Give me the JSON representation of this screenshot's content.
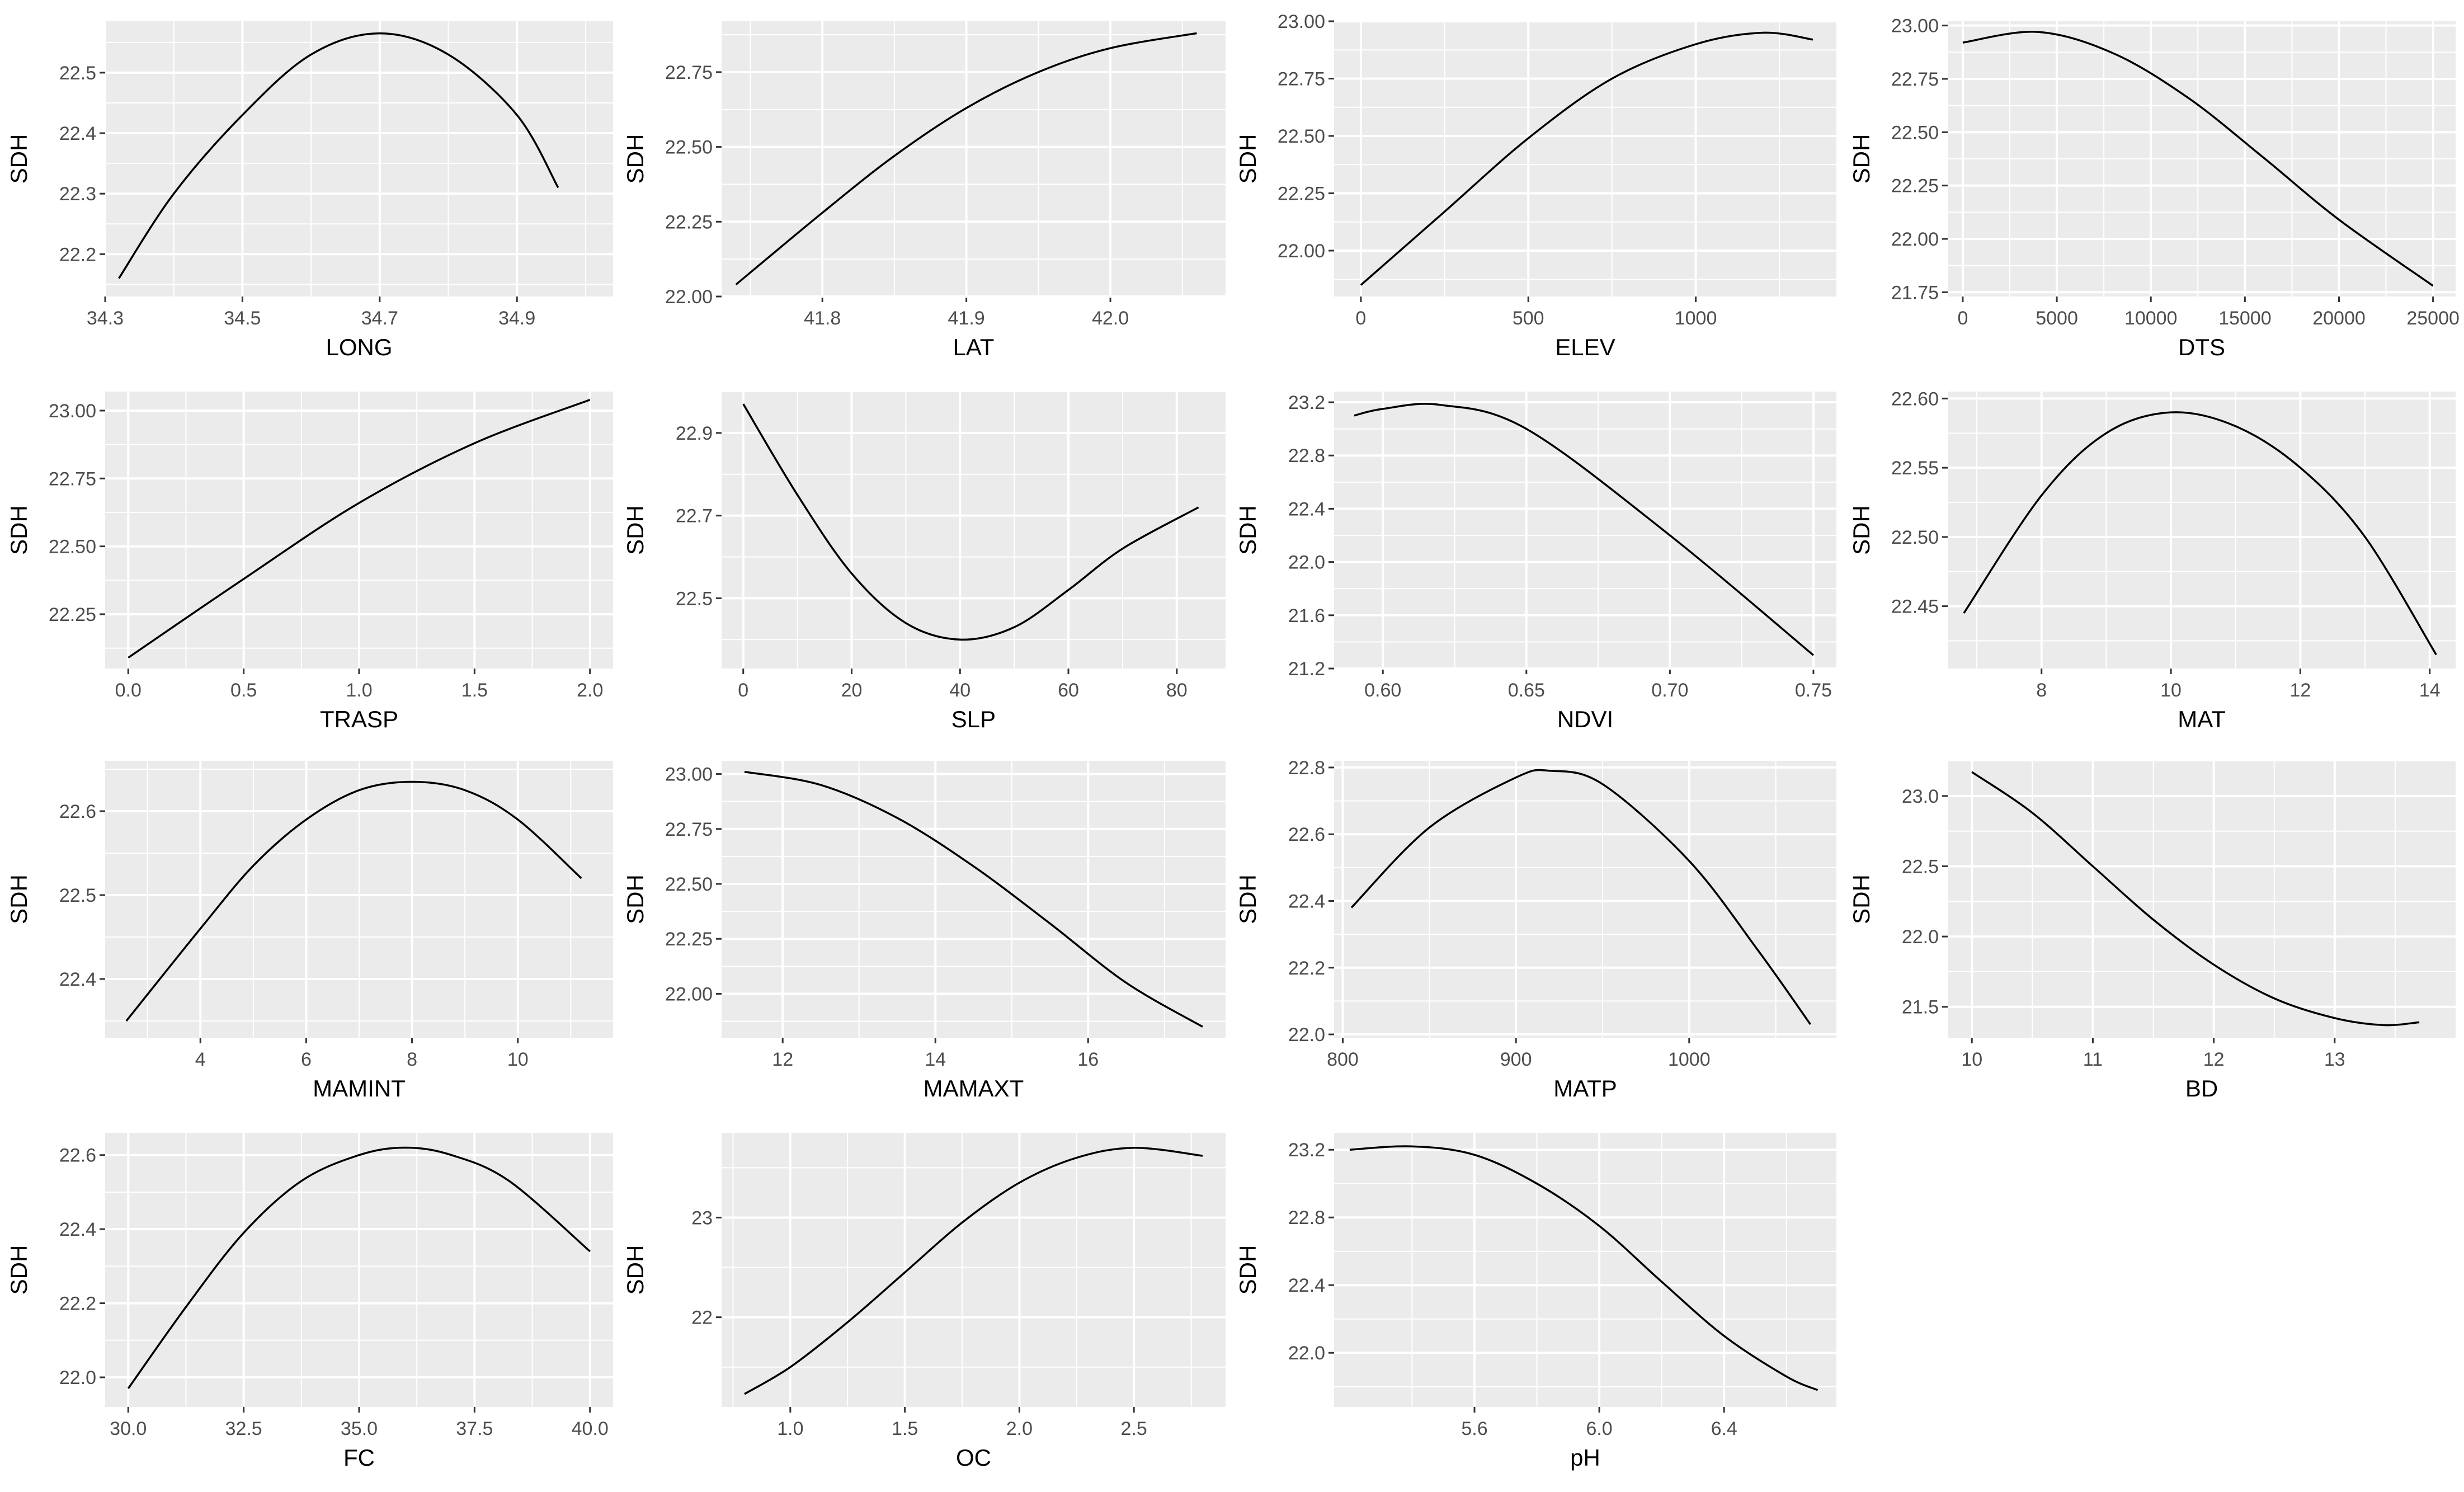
{
  "figure": {
    "panel_background": "#ebebeb",
    "grid_color": "#ffffff",
    "line_color": "#000000",
    "tick_label_color": "#4d4d4d"
  },
  "chart_data": [
    {
      "type": "line",
      "xlabel": "LONG",
      "ylabel": "SDH",
      "xlim": [
        34.3,
        35.04
      ],
      "ylim": [
        22.13,
        22.585
      ],
      "xticks": [
        34.3,
        34.5,
        34.7,
        34.9
      ],
      "yticks": [
        22.2,
        22.3,
        22.4,
        22.5
      ],
      "x": [
        34.32,
        34.4,
        34.5,
        34.6,
        34.7,
        34.8,
        34.9,
        34.96
      ],
      "y": [
        22.16,
        22.3,
        22.43,
        22.53,
        22.565,
        22.53,
        22.43,
        22.31
      ]
    },
    {
      "type": "line",
      "xlabel": "LAT",
      "ylabel": "SDH",
      "xlim": [
        41.73,
        42.08
      ],
      "ylim": [
        22.0,
        22.92
      ],
      "xticks": [
        41.8,
        41.9,
        42.0
      ],
      "yticks": [
        22.0,
        22.25,
        22.5,
        22.75
      ],
      "x": [
        41.74,
        41.8,
        41.85,
        41.9,
        41.95,
        42.0,
        42.06
      ],
      "y": [
        22.04,
        22.28,
        22.47,
        22.63,
        22.75,
        22.83,
        22.88
      ]
    },
    {
      "type": "line",
      "xlabel": "ELEV",
      "ylabel": "SDH",
      "xlim": [
        -80,
        1420
      ],
      "ylim": [
        21.8,
        23.0
      ],
      "xticks": [
        0,
        500,
        1000
      ],
      "yticks": [
        22.0,
        22.25,
        22.5,
        22.75,
        23.0
      ],
      "x": [
        0,
        250,
        500,
        750,
        1000,
        1200,
        1350
      ],
      "y": [
        21.85,
        22.17,
        22.49,
        22.75,
        22.9,
        22.95,
        22.92
      ]
    },
    {
      "type": "line",
      "xlabel": "DTS",
      "ylabel": "SDH",
      "xlim": [
        -800,
        26200
      ],
      "ylim": [
        21.73,
        23.02
      ],
      "xticks": [
        0,
        5000,
        10000,
        15000,
        20000,
        25000
      ],
      "yticks": [
        21.75,
        22.0,
        22.25,
        22.5,
        22.75,
        23.0
      ],
      "x": [
        0,
        4000,
        8000,
        12000,
        16000,
        20000,
        25000
      ],
      "y": [
        22.92,
        22.97,
        22.87,
        22.66,
        22.38,
        22.09,
        21.78
      ]
    },
    {
      "type": "line",
      "xlabel": "TRASP",
      "ylabel": "SDH",
      "xlim": [
        -0.1,
        2.1
      ],
      "ylim": [
        22.05,
        23.07
      ],
      "xticks": [
        0.0,
        0.5,
        1.0,
        1.5,
        2.0
      ],
      "yticks": [
        22.25,
        22.5,
        22.75,
        23.0
      ],
      "x": [
        0.0,
        0.5,
        1.0,
        1.5,
        2.0
      ],
      "y": [
        22.09,
        22.38,
        22.66,
        22.88,
        23.04
      ]
    },
    {
      "type": "line",
      "xlabel": "SLP",
      "ylabel": "SDH",
      "xlim": [
        -4,
        89
      ],
      "ylim": [
        22.33,
        23.0
      ],
      "xticks": [
        0,
        20,
        40,
        60,
        80
      ],
      "yticks": [
        22.5,
        22.7,
        22.9
      ],
      "x": [
        0,
        10,
        20,
        30,
        40,
        50,
        60,
        70,
        84
      ],
      "y": [
        22.97,
        22.75,
        22.56,
        22.44,
        22.4,
        22.43,
        22.52,
        22.62,
        22.72
      ]
    },
    {
      "type": "line",
      "xlabel": "NDVI",
      "ylabel": "SDH",
      "xlim": [
        0.583,
        0.758
      ],
      "ylim": [
        21.2,
        23.28
      ],
      "xticks": [
        0.6,
        0.65,
        0.7,
        0.75
      ],
      "yticks": [
        21.2,
        21.6,
        22.0,
        22.4,
        22.8,
        23.2
      ],
      "x": [
        0.59,
        0.6,
        0.62,
        0.65,
        0.7,
        0.75
      ],
      "y": [
        23.1,
        23.15,
        23.18,
        23.0,
        22.2,
        21.3
      ]
    },
    {
      "type": "line",
      "xlabel": "MAT",
      "ylabel": "SDH",
      "xlim": [
        6.55,
        14.4
      ],
      "ylim": [
        22.405,
        22.605
      ],
      "xticks": [
        8,
        10,
        12,
        14
      ],
      "yticks": [
        22.45,
        22.5,
        22.55,
        22.6
      ],
      "x": [
        6.8,
        8,
        9,
        10,
        11,
        12,
        13,
        14.1
      ],
      "y": [
        22.445,
        22.53,
        22.575,
        22.59,
        22.58,
        22.55,
        22.5,
        22.415
      ]
    },
    {
      "type": "line",
      "xlabel": "MAMINT",
      "ylabel": "SDH",
      "xlim": [
        2.2,
        11.8
      ],
      "ylim": [
        22.33,
        22.66
      ],
      "xticks": [
        4,
        6,
        8,
        10
      ],
      "yticks": [
        22.4,
        22.5,
        22.6
      ],
      "x": [
        2.6,
        4,
        5,
        6,
        7,
        8,
        9,
        10,
        11.2
      ],
      "y": [
        22.35,
        22.46,
        22.535,
        22.59,
        22.625,
        22.635,
        22.625,
        22.59,
        22.52
      ]
    },
    {
      "type": "line",
      "xlabel": "MAMAXT",
      "ylabel": "SDH",
      "xlim": [
        11.2,
        17.8
      ],
      "ylim": [
        21.8,
        23.06
      ],
      "xticks": [
        12,
        14,
        16
      ],
      "yticks": [
        22.0,
        22.25,
        22.5,
        22.75,
        23.0
      ],
      "x": [
        11.5,
        12.5,
        13.5,
        14.5,
        15.5,
        16.5,
        17.5
      ],
      "y": [
        23.01,
        22.95,
        22.8,
        22.58,
        22.32,
        22.05,
        21.85
      ]
    },
    {
      "type": "line",
      "xlabel": "MATP",
      "ylabel": "SDH",
      "xlim": [
        795,
        1085
      ],
      "ylim": [
        21.99,
        22.82
      ],
      "xticks": [
        800,
        900,
        1000
      ],
      "yticks": [
        22.0,
        22.2,
        22.4,
        22.6,
        22.8
      ],
      "x": [
        805,
        850,
        900,
        920,
        950,
        1000,
        1040,
        1070
      ],
      "y": [
        22.38,
        22.62,
        22.77,
        22.79,
        22.75,
        22.52,
        22.25,
        22.03
      ]
    },
    {
      "type": "line",
      "xlabel": "BD",
      "ylabel": "SDH",
      "xlim": [
        9.8,
        14.0
      ],
      "ylim": [
        21.28,
        23.25
      ],
      "xticks": [
        10,
        11,
        12,
        13
      ],
      "yticks": [
        21.5,
        22.0,
        22.5,
        23.0
      ],
      "x": [
        10,
        10.5,
        11,
        11.5,
        12,
        12.5,
        13,
        13.4,
        13.7
      ],
      "y": [
        23.17,
        22.88,
        22.5,
        22.12,
        21.8,
        21.56,
        21.42,
        21.37,
        21.39
      ]
    },
    {
      "type": "line",
      "xlabel": "FC",
      "ylabel": "SDH",
      "xlim": [
        29.5,
        40.5
      ],
      "ylim": [
        21.92,
        22.66
      ],
      "xticks": [
        30.0,
        32.5,
        35.0,
        37.5,
        40.0
      ],
      "yticks": [
        22.0,
        22.2,
        22.4,
        22.6
      ],
      "x": [
        30,
        31.25,
        32.5,
        33.75,
        35,
        36,
        37,
        38.25,
        40
      ],
      "y": [
        21.97,
        22.19,
        22.39,
        22.53,
        22.6,
        22.62,
        22.6,
        22.53,
        22.34
      ]
    },
    {
      "type": "line",
      "xlabel": "OC",
      "ylabel": "SDH",
      "xlim": [
        0.7,
        2.9
      ],
      "ylim": [
        21.1,
        23.85
      ],
      "xticks": [
        1.0,
        1.5,
        2.0,
        2.5
      ],
      "yticks": [
        22,
        23
      ],
      "x": [
        0.8,
        1.0,
        1.25,
        1.5,
        1.75,
        2.0,
        2.25,
        2.5,
        2.8
      ],
      "y": [
        21.23,
        21.5,
        21.95,
        22.45,
        22.95,
        23.35,
        23.6,
        23.7,
        23.62
      ]
    },
    {
      "type": "line",
      "xlabel": "pH",
      "ylabel": "SDH",
      "xlim": [
        5.15,
        6.76
      ],
      "ylim": [
        21.68,
        23.3
      ],
      "xticks": [
        5.6,
        6.0,
        6.4
      ],
      "yticks": [
        22.0,
        22.4,
        22.8,
        23.2
      ],
      "x": [
        5.2,
        5.4,
        5.6,
        5.8,
        6.0,
        6.2,
        6.4,
        6.6,
        6.7
      ],
      "y": [
        23.2,
        23.22,
        23.17,
        23.0,
        22.75,
        22.42,
        22.1,
        21.86,
        21.78
      ]
    }
  ]
}
